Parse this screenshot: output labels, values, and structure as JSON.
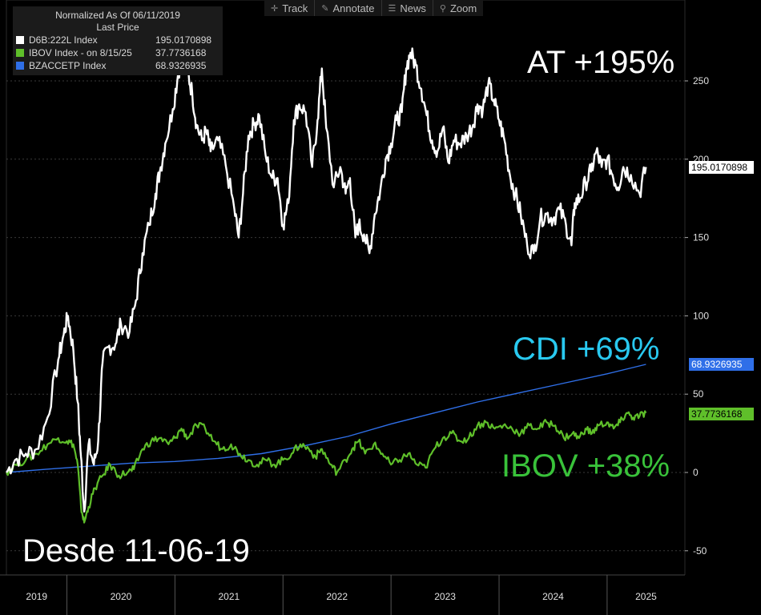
{
  "legend": {
    "title": "Normalized As Of 06/11/2019",
    "subtitle": "Last Price",
    "rows": [
      {
        "name": "D6B:222L Index",
        "value": "195.0170898",
        "color": "#ffffff"
      },
      {
        "name": "IBOV Index -  on 8/15/25",
        "value": "37.7736168",
        "color": "#5fbf2a"
      },
      {
        "name": "BZACCETP Index",
        "value": "68.9326935",
        "color": "#2f6fe8"
      }
    ]
  },
  "toolbar": {
    "items": [
      {
        "label": "Track",
        "icon": "crosshair-icon"
      },
      {
        "label": "Annotate",
        "icon": "pencil-icon"
      },
      {
        "label": "News",
        "icon": "news-icon"
      },
      {
        "label": "Zoom",
        "icon": "magnifier-icon"
      }
    ]
  },
  "annotations": {
    "at": "AT +195%",
    "cdi": "CDI +69%",
    "ibov": "IBOV +38%",
    "since": "Desde 11-06-19"
  },
  "tags": {
    "at": "195.0170898",
    "cdi": "68.9326935",
    "ibov": "37.7736168"
  },
  "colors": {
    "at": "#ffffff",
    "ibov": "#5fbf2a",
    "cdi": "#2f6fe8",
    "cdi_label": "#29c9f0",
    "ibov_label": "#39c23a",
    "tag_cdi_bg": "#2f6fe8",
    "tag_ibov_bg": "#5fbf2a"
  },
  "chart_data": {
    "type": "line",
    "x_unit": "year (decimal)",
    "xlim": [
      2019.44,
      2025.72
    ],
    "ylim": [
      -65,
      300
    ],
    "y_ticks": [
      -50,
      0,
      50,
      100,
      150,
      200,
      250
    ],
    "x_tick_labels": [
      "2019",
      "2020",
      "2021",
      "2022",
      "2023",
      "2024",
      "2025"
    ],
    "grid": true,
    "series": [
      {
        "name": "D6B:222L Index",
        "points": [
          [
            2019.44,
            0
          ],
          [
            2019.52,
            8
          ],
          [
            2019.62,
            12
          ],
          [
            2019.72,
            15
          ],
          [
            2019.82,
            35
          ],
          [
            2019.92,
            72
          ],
          [
            2019.97,
            88
          ],
          [
            2020.01,
            100
          ],
          [
            2020.06,
            78
          ],
          [
            2020.1,
            45
          ],
          [
            2020.13,
            10
          ],
          [
            2020.16,
            -25
          ],
          [
            2020.2,
            18
          ],
          [
            2020.25,
            5
          ],
          [
            2020.29,
            20
          ],
          [
            2020.33,
            70
          ],
          [
            2020.38,
            80
          ],
          [
            2020.45,
            82
          ],
          [
            2020.5,
            95
          ],
          [
            2020.58,
            90
          ],
          [
            2020.64,
            110
          ],
          [
            2020.7,
            140
          ],
          [
            2020.76,
            158
          ],
          [
            2020.82,
            178
          ],
          [
            2020.86,
            192
          ],
          [
            2020.91,
            210
          ],
          [
            2020.98,
            232
          ],
          [
            2021.03,
            255
          ],
          [
            2021.08,
            265
          ],
          [
            2021.12,
            255
          ],
          [
            2021.16,
            242
          ],
          [
            2021.2,
            222
          ],
          [
            2021.25,
            212
          ],
          [
            2021.29,
            218
          ],
          [
            2021.33,
            205
          ],
          [
            2021.4,
            212
          ],
          [
            2021.47,
            196
          ],
          [
            2021.55,
            168
          ],
          [
            2021.59,
            150
          ],
          [
            2021.63,
            178
          ],
          [
            2021.68,
            215
          ],
          [
            2021.73,
            222
          ],
          [
            2021.78,
            228
          ],
          [
            2021.84,
            202
          ],
          [
            2021.9,
            188
          ],
          [
            2021.95,
            188
          ],
          [
            2022.0,
            158
          ],
          [
            2022.05,
            172
          ],
          [
            2022.1,
            225
          ],
          [
            2022.15,
            235
          ],
          [
            2022.21,
            230
          ],
          [
            2022.27,
            195
          ],
          [
            2022.32,
            225
          ],
          [
            2022.36,
            258
          ],
          [
            2022.4,
            220
          ],
          [
            2022.47,
            182
          ],
          [
            2022.53,
            195
          ],
          [
            2022.58,
            178
          ],
          [
            2022.62,
            188
          ],
          [
            2022.67,
            150
          ],
          [
            2022.7,
            158
          ],
          [
            2022.75,
            152
          ],
          [
            2022.8,
            140
          ],
          [
            2022.85,
            165
          ],
          [
            2022.9,
            180
          ],
          [
            2022.95,
            200
          ],
          [
            2023.0,
            210
          ],
          [
            2023.05,
            225
          ],
          [
            2023.1,
            230
          ],
          [
            2023.14,
            258
          ],
          [
            2023.18,
            268
          ],
          [
            2023.23,
            260
          ],
          [
            2023.28,
            245
          ],
          [
            2023.33,
            228
          ],
          [
            2023.38,
            212
          ],
          [
            2023.43,
            205
          ],
          [
            2023.48,
            220
          ],
          [
            2023.53,
            198
          ],
          [
            2023.58,
            212
          ],
          [
            2023.64,
            210
          ],
          [
            2023.7,
            215
          ],
          [
            2023.76,
            222
          ],
          [
            2023.8,
            235
          ],
          [
            2023.85,
            232
          ],
          [
            2023.9,
            248
          ],
          [
            2023.95,
            238
          ],
          [
            2024.0,
            225
          ],
          [
            2024.05,
            212
          ],
          [
            2024.1,
            190
          ],
          [
            2024.15,
            178
          ],
          [
            2024.2,
            165
          ],
          [
            2024.26,
            145
          ],
          [
            2024.32,
            140
          ],
          [
            2024.38,
            162
          ],
          [
            2024.44,
            165
          ],
          [
            2024.5,
            162
          ],
          [
            2024.56,
            168
          ],
          [
            2024.62,
            158
          ],
          [
            2024.67,
            145
          ],
          [
            2024.7,
            172
          ],
          [
            2024.75,
            175
          ],
          [
            2024.8,
            185
          ],
          [
            2024.85,
            192
          ],
          [
            2024.9,
            205
          ],
          [
            2024.95,
            195
          ],
          [
            2025.0,
            200
          ],
          [
            2025.05,
            190
          ],
          [
            2025.1,
            182
          ],
          [
            2025.15,
            195
          ],
          [
            2025.22,
            190
          ],
          [
            2025.3,
            178
          ],
          [
            2025.36,
            195
          ]
        ]
      },
      {
        "name": "IBOV Index -  on 8/15/25",
        "points": [
          [
            2019.44,
            0
          ],
          [
            2019.52,
            5
          ],
          [
            2019.62,
            8
          ],
          [
            2019.72,
            12
          ],
          [
            2019.82,
            18
          ],
          [
            2019.92,
            22
          ],
          [
            2020.0,
            20
          ],
          [
            2020.06,
            18
          ],
          [
            2020.1,
            5
          ],
          [
            2020.13,
            -22
          ],
          [
            2020.16,
            -32
          ],
          [
            2020.2,
            -22
          ],
          [
            2020.26,
            -10
          ],
          [
            2020.33,
            -2
          ],
          [
            2020.4,
            5
          ],
          [
            2020.48,
            -2
          ],
          [
            2020.56,
            0
          ],
          [
            2020.62,
            2
          ],
          [
            2020.7,
            15
          ],
          [
            2020.78,
            20
          ],
          [
            2020.86,
            22
          ],
          [
            2020.94,
            18
          ],
          [
            2021.0,
            22
          ],
          [
            2021.06,
            28
          ],
          [
            2021.12,
            22
          ],
          [
            2021.2,
            30
          ],
          [
            2021.28,
            28
          ],
          [
            2021.36,
            20
          ],
          [
            2021.44,
            15
          ],
          [
            2021.52,
            18
          ],
          [
            2021.6,
            12
          ],
          [
            2021.68,
            8
          ],
          [
            2021.76,
            5
          ],
          [
            2021.84,
            8
          ],
          [
            2021.92,
            5
          ],
          [
            2022.0,
            8
          ],
          [
            2022.08,
            12
          ],
          [
            2022.16,
            18
          ],
          [
            2022.24,
            15
          ],
          [
            2022.3,
            10
          ],
          [
            2022.36,
            15
          ],
          [
            2022.44,
            5
          ],
          [
            2022.5,
            0
          ],
          [
            2022.58,
            8
          ],
          [
            2022.64,
            15
          ],
          [
            2022.7,
            20
          ],
          [
            2022.76,
            12
          ],
          [
            2022.84,
            18
          ],
          [
            2022.92,
            12
          ],
          [
            2023.0,
            5
          ],
          [
            2023.08,
            8
          ],
          [
            2023.16,
            12
          ],
          [
            2023.24,
            5
          ],
          [
            2023.32,
            3
          ],
          [
            2023.4,
            15
          ],
          [
            2023.48,
            22
          ],
          [
            2023.56,
            25
          ],
          [
            2023.64,
            20
          ],
          [
            2023.72,
            22
          ],
          [
            2023.8,
            30
          ],
          [
            2023.88,
            32
          ],
          [
            2023.96,
            28
          ],
          [
            2024.04,
            30
          ],
          [
            2024.12,
            28
          ],
          [
            2024.2,
            25
          ],
          [
            2024.28,
            30
          ],
          [
            2024.36,
            28
          ],
          [
            2024.44,
            32
          ],
          [
            2024.52,
            30
          ],
          [
            2024.6,
            22
          ],
          [
            2024.68,
            25
          ],
          [
            2024.74,
            22
          ],
          [
            2024.8,
            28
          ],
          [
            2024.86,
            25
          ],
          [
            2024.92,
            30
          ],
          [
            2025.0,
            32
          ],
          [
            2025.06,
            28
          ],
          [
            2025.12,
            32
          ],
          [
            2025.18,
            38
          ],
          [
            2025.24,
            35
          ],
          [
            2025.3,
            36
          ],
          [
            2025.36,
            38
          ]
        ]
      },
      {
        "name": "BZACCETP Index",
        "points": [
          [
            2019.44,
            0
          ],
          [
            2019.8,
            2
          ],
          [
            2020.2,
            4
          ],
          [
            2020.6,
            6
          ],
          [
            2021.0,
            7
          ],
          [
            2021.4,
            9
          ],
          [
            2021.8,
            12
          ],
          [
            2022.2,
            17
          ],
          [
            2022.6,
            23
          ],
          [
            2023.0,
            31
          ],
          [
            2023.4,
            38
          ],
          [
            2023.8,
            45
          ],
          [
            2024.2,
            51
          ],
          [
            2024.6,
            57
          ],
          [
            2025.0,
            63
          ],
          [
            2025.36,
            69
          ]
        ]
      }
    ]
  }
}
